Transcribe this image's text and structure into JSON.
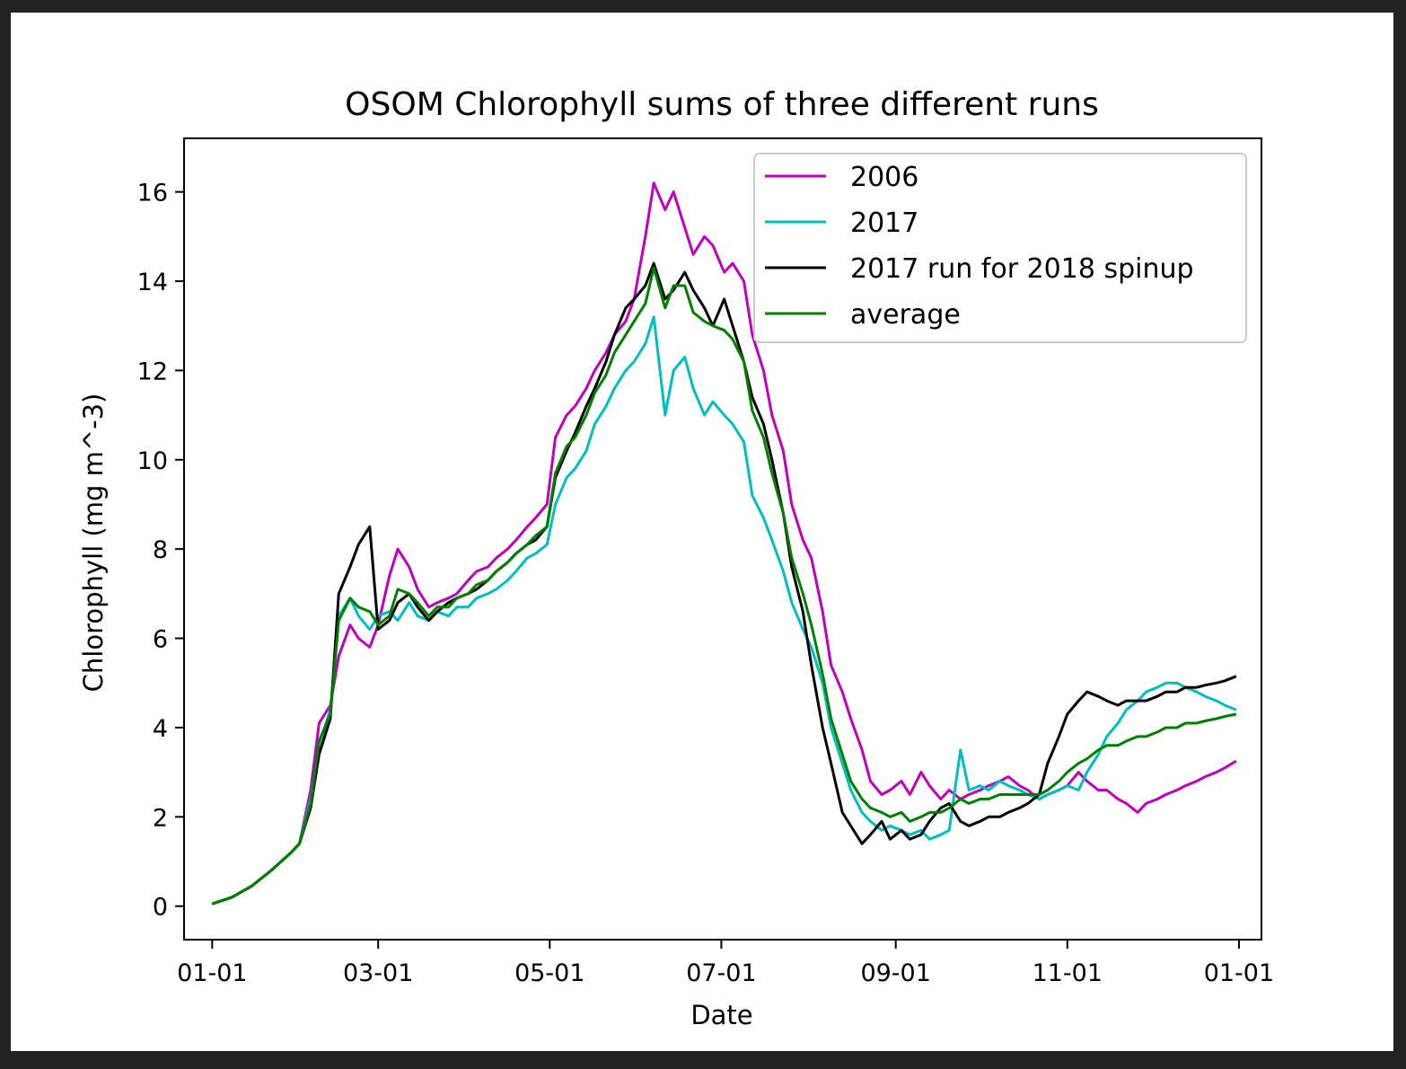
{
  "chart_data": {
    "type": "line",
    "title": "OSOM Chlorophyll sums of three different runs",
    "xlabel": "Date",
    "ylabel": "Chlorophyll (mg m^-3)",
    "xlim": [
      "12-22",
      "01-09"
    ],
    "ylim": [
      -0.75,
      17.2
    ],
    "x_ticks": [
      "01-01",
      "03-01",
      "05-01",
      "07-01",
      "09-01",
      "11-01",
      "01-01"
    ],
    "y_ticks": [
      0,
      2,
      4,
      6,
      8,
      10,
      12,
      14,
      16
    ],
    "grid": false,
    "legend_position": "upper right",
    "x_dates": [
      "01-01",
      "01-08",
      "01-15",
      "01-22",
      "01-29",
      "02-01",
      "02-05",
      "02-08",
      "02-12",
      "02-15",
      "02-19",
      "02-22",
      "02-26",
      "03-01",
      "03-05",
      "03-08",
      "03-12",
      "03-15",
      "03-19",
      "03-22",
      "03-26",
      "03-29",
      "04-02",
      "04-05",
      "04-09",
      "04-12",
      "04-16",
      "04-19",
      "04-23",
      "04-26",
      "04-30",
      "05-03",
      "05-07",
      "05-10",
      "05-14",
      "05-17",
      "05-21",
      "05-24",
      "05-28",
      "05-31",
      "06-04",
      "06-07",
      "06-11",
      "06-14",
      "06-18",
      "06-21",
      "06-25",
      "06-28",
      "07-02",
      "07-05",
      "07-09",
      "07-12",
      "07-16",
      "07-19",
      "07-23",
      "07-26",
      "07-30",
      "08-02",
      "08-06",
      "08-09",
      "08-13",
      "08-16",
      "08-20",
      "08-23",
      "08-27",
      "08-30",
      "09-03",
      "09-06",
      "09-10",
      "09-13",
      "09-17",
      "09-20",
      "09-24",
      "09-27",
      "10-01",
      "10-04",
      "10-08",
      "10-11",
      "10-15",
      "10-18",
      "10-22",
      "10-25",
      "10-29",
      "11-01",
      "11-05",
      "11-08",
      "11-12",
      "11-15",
      "11-19",
      "11-22",
      "11-26",
      "11-29",
      "12-03",
      "12-06",
      "12-10",
      "12-13",
      "12-17",
      "12-20",
      "12-24",
      "12-27",
      "12-31"
    ],
    "series": [
      {
        "name": "2006",
        "color": "#bf00bf",
        "values": [
          0.05,
          0.2,
          0.45,
          0.8,
          1.2,
          1.4,
          2.6,
          4.1,
          4.5,
          5.6,
          6.3,
          6.0,
          5.8,
          6.3,
          7.4,
          8.0,
          7.6,
          7.1,
          6.7,
          6.8,
          6.9,
          7.0,
          7.3,
          7.5,
          7.6,
          7.8,
          8.0,
          8.2,
          8.5,
          8.7,
          9.0,
          10.5,
          11.0,
          11.2,
          11.6,
          12.0,
          12.4,
          12.8,
          13.1,
          13.6,
          15.0,
          16.2,
          15.6,
          16.0,
          15.2,
          14.6,
          15.0,
          14.8,
          14.2,
          14.4,
          14.0,
          12.8,
          12.0,
          11.0,
          10.2,
          9.0,
          8.2,
          7.8,
          6.6,
          5.4,
          4.8,
          4.2,
          3.5,
          2.8,
          2.5,
          2.6,
          2.8,
          2.5,
          3.0,
          2.7,
          2.4,
          2.6,
          2.4,
          2.5,
          2.6,
          2.7,
          2.8,
          2.9,
          2.7,
          2.6,
          2.4,
          2.5,
          2.6,
          2.7,
          3.0,
          2.8,
          2.6,
          2.6,
          2.4,
          2.3,
          2.1,
          2.3,
          2.4,
          2.5,
          2.6,
          2.7,
          2.8,
          2.9,
          3.0,
          3.1,
          3.25
        ]
      },
      {
        "name": "2017",
        "color": "#00bfbf",
        "values": [
          0.05,
          0.2,
          0.45,
          0.8,
          1.2,
          1.4,
          2.4,
          3.6,
          4.4,
          6.5,
          6.9,
          6.5,
          6.2,
          6.5,
          6.6,
          6.4,
          6.8,
          6.5,
          6.4,
          6.6,
          6.5,
          6.7,
          6.7,
          6.9,
          7.0,
          7.1,
          7.3,
          7.5,
          7.8,
          7.9,
          8.1,
          9.0,
          9.6,
          9.8,
          10.2,
          10.8,
          11.2,
          11.6,
          12.0,
          12.2,
          12.6,
          13.2,
          11.0,
          12.0,
          12.3,
          11.6,
          11.0,
          11.3,
          11.0,
          10.8,
          10.4,
          9.2,
          8.7,
          8.2,
          7.5,
          6.8,
          6.2,
          5.8,
          5.0,
          4.0,
          3.2,
          2.6,
          2.1,
          1.9,
          1.7,
          1.8,
          1.7,
          1.6,
          1.7,
          1.5,
          1.6,
          1.7,
          3.5,
          2.6,
          2.7,
          2.6,
          2.8,
          2.7,
          2.6,
          2.5,
          2.4,
          2.5,
          2.6,
          2.7,
          2.6,
          3.0,
          3.4,
          3.8,
          4.1,
          4.4,
          4.6,
          4.8,
          4.9,
          5.0,
          5.0,
          4.9,
          4.8,
          4.7,
          4.6,
          4.5,
          4.4
        ]
      },
      {
        "name": "2017 run for 2018 spinup",
        "color": "#000000",
        "values": [
          0.05,
          0.2,
          0.45,
          0.8,
          1.2,
          1.4,
          2.2,
          3.4,
          4.2,
          7.0,
          7.6,
          8.1,
          8.5,
          6.2,
          6.4,
          6.8,
          7.0,
          6.7,
          6.4,
          6.6,
          6.8,
          6.9,
          7.0,
          7.1,
          7.3,
          7.5,
          7.7,
          7.9,
          8.1,
          8.2,
          8.5,
          9.6,
          10.2,
          10.6,
          11.2,
          11.6,
          12.2,
          12.8,
          13.4,
          13.6,
          13.9,
          14.4,
          13.6,
          13.8,
          14.2,
          13.8,
          13.4,
          13.0,
          13.6,
          13.0,
          12.2,
          11.4,
          10.8,
          10.0,
          8.8,
          7.6,
          6.6,
          5.4,
          4.0,
          3.2,
          2.1,
          1.8,
          1.4,
          1.6,
          1.9,
          1.5,
          1.7,
          1.5,
          1.6,
          1.9,
          2.2,
          2.3,
          1.9,
          1.8,
          1.9,
          2.0,
          2.0,
          2.1,
          2.2,
          2.3,
          2.5,
          3.2,
          3.8,
          4.3,
          4.6,
          4.8,
          4.7,
          4.6,
          4.5,
          4.6,
          4.6,
          4.6,
          4.7,
          4.8,
          4.8,
          4.9,
          4.9,
          4.95,
          5.0,
          5.05,
          5.15
        ]
      },
      {
        "name": "average",
        "color": "#008000",
        "values": [
          0.05,
          0.2,
          0.45,
          0.8,
          1.2,
          1.4,
          2.3,
          3.7,
          4.3,
          6.4,
          6.9,
          6.7,
          6.6,
          6.3,
          6.5,
          7.1,
          7.0,
          6.8,
          6.5,
          6.7,
          6.7,
          6.9,
          7.0,
          7.2,
          7.3,
          7.5,
          7.7,
          7.9,
          8.1,
          8.3,
          8.5,
          9.7,
          10.3,
          10.5,
          11.0,
          11.5,
          11.9,
          12.4,
          12.8,
          13.1,
          13.5,
          14.3,
          13.4,
          13.9,
          13.9,
          13.3,
          13.1,
          13.0,
          12.9,
          12.7,
          12.2,
          11.1,
          10.5,
          9.7,
          8.8,
          7.8,
          7.0,
          6.3,
          5.2,
          4.2,
          3.4,
          2.8,
          2.4,
          2.2,
          2.1,
          2.0,
          2.1,
          1.9,
          2.0,
          2.1,
          2.1,
          2.2,
          2.4,
          2.3,
          2.4,
          2.4,
          2.5,
          2.5,
          2.5,
          2.5,
          2.5,
          2.6,
          2.8,
          3.0,
          3.2,
          3.3,
          3.5,
          3.6,
          3.6,
          3.7,
          3.8,
          3.8,
          3.9,
          4.0,
          4.0,
          4.1,
          4.1,
          4.15,
          4.2,
          4.25,
          4.3
        ]
      }
    ]
  }
}
